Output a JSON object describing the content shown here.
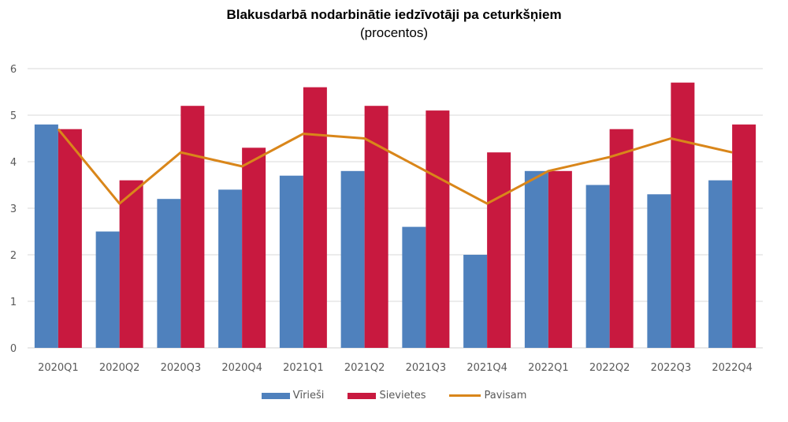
{
  "chart_data": {
    "type": "bar",
    "title": "Blakusdarbā nodarbinātie iedzīvotāji pa ceturkšņiem",
    "subtitle": "(procentos)",
    "xlabel": "",
    "ylabel": "",
    "ylim": [
      0,
      6
    ],
    "yticks": [
      0,
      1,
      2,
      3,
      4,
      5,
      6
    ],
    "grid": true,
    "legend_position": "bottom",
    "categories": [
      "2020Q1",
      "2020Q2",
      "2020Q3",
      "2020Q4",
      "2021Q1",
      "2021Q2",
      "2021Q3",
      "2021Q4",
      "2022Q1",
      "2022Q2",
      "2022Q3",
      "2022Q4"
    ],
    "series": [
      {
        "name": "Vīrieši",
        "kind": "bar",
        "color": "#4f81bd",
        "values": [
          4.8,
          2.5,
          3.2,
          3.4,
          3.7,
          3.8,
          2.6,
          2.0,
          3.8,
          3.5,
          3.3,
          3.6
        ]
      },
      {
        "name": "Sievietes",
        "kind": "bar",
        "color": "#c8193f",
        "values": [
          4.7,
          3.6,
          5.2,
          4.3,
          5.6,
          5.2,
          5.1,
          4.2,
          3.8,
          4.7,
          5.7,
          4.8
        ]
      },
      {
        "name": "Pavisam",
        "kind": "line",
        "color": "#d9861a",
        "values": [
          4.7,
          3.1,
          4.2,
          3.9,
          4.6,
          4.5,
          3.8,
          3.1,
          3.8,
          4.1,
          4.5,
          4.2
        ]
      }
    ]
  }
}
